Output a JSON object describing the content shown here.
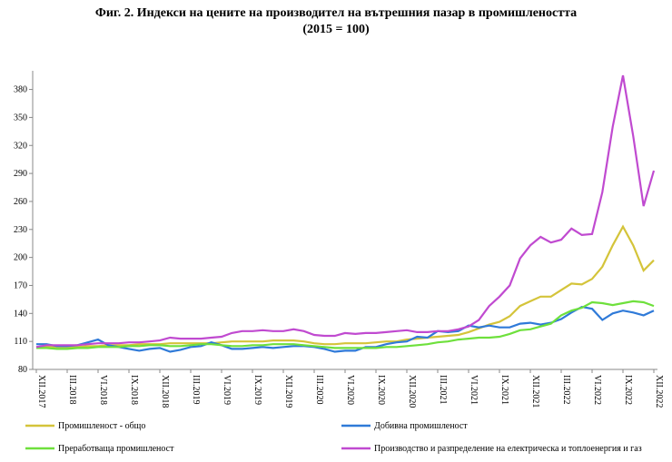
{
  "chart_data": {
    "type": "line",
    "title": "Фиг. 2. Индекси на цените на производител на вътрешния пазар в промишлеността",
    "subtitle": "(2015 = 100)",
    "categories": [
      "XII.2017",
      null,
      null,
      "III.2018",
      null,
      null,
      "VI.2018",
      null,
      null,
      "IX.2018",
      null,
      null,
      "XII.2018",
      null,
      null,
      "III.2019",
      null,
      null,
      "VI.2019",
      null,
      null,
      "IX.2019",
      null,
      null,
      "XII.2019",
      null,
      null,
      "III.2020",
      null,
      null,
      "VI.2020",
      null,
      null,
      "IX.2020",
      null,
      null,
      "XII.2020",
      null,
      null,
      "III.2021",
      null,
      null,
      "VI.2021",
      null,
      null,
      "IX.2021",
      null,
      null,
      "XII.2021",
      null,
      null,
      "III.2022",
      null,
      null,
      "VI.2022",
      null,
      null,
      "IX.2022",
      null,
      null,
      "XII.2022"
    ],
    "ylim": [
      80,
      400
    ],
    "yticks": [
      80,
      110,
      140,
      170,
      200,
      230,
      260,
      290,
      320,
      350,
      380
    ],
    "grid": false,
    "legend": "bottom",
    "series": [
      {
        "name": "Промишленост - общо",
        "color": "#d4c43a",
        "values": [
          104,
          105,
          104,
          104,
          104,
          105,
          105,
          106,
          106,
          106,
          107,
          107,
          107,
          108,
          108,
          108,
          108,
          108,
          109,
          110,
          110,
          110,
          110,
          111,
          111,
          111,
          110,
          108,
          107,
          107,
          108,
          108,
          108,
          109,
          110,
          110,
          112,
          113,
          114,
          115,
          116,
          117,
          120,
          124,
          128,
          131,
          137,
          148,
          153,
          158,
          158,
          165,
          172,
          171,
          177,
          190,
          213,
          233,
          213,
          186,
          197
        ]
      },
      {
        "name": "Добивна промишленост",
        "color": "#2f7ad8",
        "values": [
          107,
          107,
          105,
          105,
          106,
          109,
          112,
          106,
          104,
          102,
          100,
          102,
          103,
          99,
          101,
          104,
          105,
          109,
          106,
          102,
          102,
          103,
          104,
          103,
          104,
          105,
          105,
          104,
          102,
          99,
          100,
          100,
          104,
          104,
          107,
          109,
          110,
          115,
          114,
          121,
          120,
          121,
          127,
          125,
          127,
          125,
          125,
          129,
          130,
          128,
          130,
          134,
          141,
          147,
          145,
          133,
          140,
          143,
          141,
          138,
          143
        ]
      },
      {
        "name": "Преработваща промишленост",
        "color": "#6ee03c",
        "values": [
          103,
          103,
          102,
          102,
          103,
          103,
          104,
          104,
          104,
          105,
          105,
          106,
          106,
          105,
          105,
          106,
          107,
          107,
          106,
          105,
          105,
          106,
          106,
          107,
          107,
          107,
          106,
          105,
          104,
          103,
          103,
          103,
          103,
          103,
          104,
          104,
          105,
          106,
          107,
          109,
          110,
          112,
          113,
          114,
          114,
          115,
          118,
          122,
          123,
          126,
          129,
          138,
          143,
          146,
          152,
          151,
          149,
          151,
          153,
          152,
          148
        ]
      },
      {
        "name": "Производство и разпределение на електрическа и топлоенергия и газ",
        "color": "#c04ad0",
        "values": [
          104,
          106,
          106,
          106,
          106,
          107,
          108,
          108,
          108,
          109,
          109,
          110,
          111,
          114,
          113,
          113,
          113,
          114,
          115,
          119,
          121,
          121,
          122,
          121,
          121,
          123,
          121,
          117,
          116,
          116,
          119,
          118,
          119,
          119,
          120,
          121,
          122,
          120,
          120,
          121,
          121,
          123,
          126,
          133,
          148,
          158,
          170,
          199,
          213,
          222,
          216,
          219,
          231,
          224,
          225,
          270,
          340,
          395,
          330,
          255,
          293
        ]
      }
    ]
  }
}
